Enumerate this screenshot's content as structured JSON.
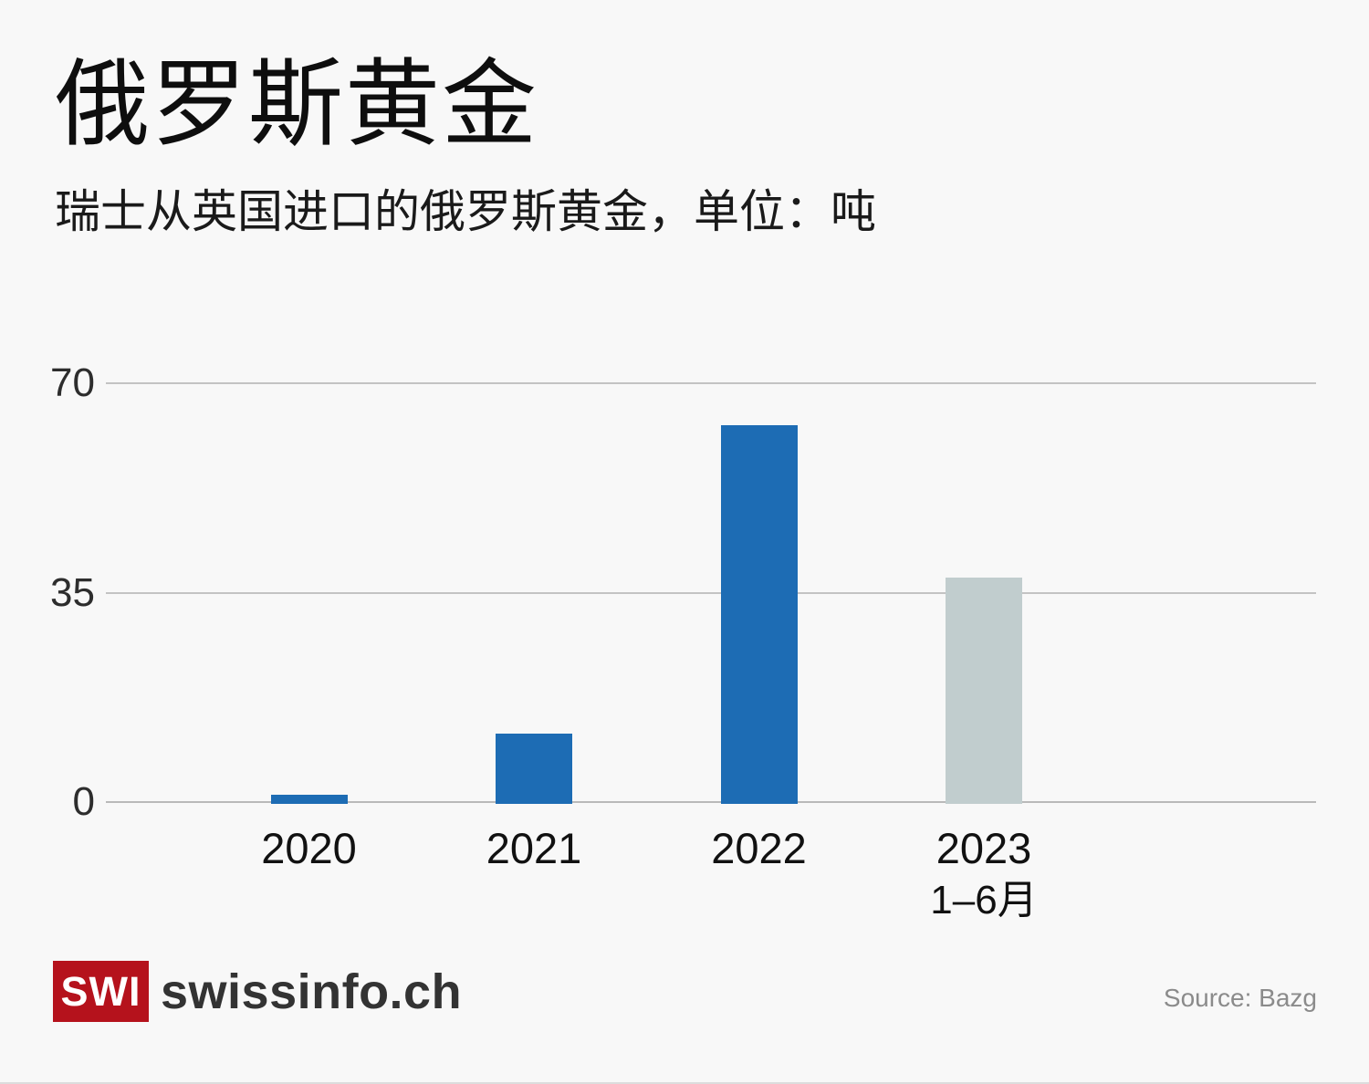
{
  "header": {
    "title": "俄罗斯黄金",
    "subtitle": "瑞士从英国进口的俄罗斯黄金，单位：吨"
  },
  "chart_data": {
    "type": "bar",
    "title": "俄罗斯黄金",
    "subtitle": "瑞士从英国进口的俄罗斯黄金，单位：吨",
    "categories": [
      "2020",
      "2021",
      "2022",
      "2023"
    ],
    "category_sublabels": [
      "",
      "",
      "",
      "1–6月"
    ],
    "values": [
      1.2,
      11.5,
      63,
      37.5
    ],
    "unit": "吨",
    "ylim": [
      0,
      70
    ],
    "yticks": [
      0,
      35,
      70
    ],
    "grid": true,
    "legend": "none",
    "bar_color_default": "#1d6cb4",
    "bar_color_partial_period": "#c1cdce",
    "partial_period_index": 3
  },
  "footer": {
    "logo_abbr": "SWI",
    "logo_name": "swissinfo.ch",
    "source": "Source: Bazg"
  },
  "colors": {
    "background": "#f8f8f8",
    "bar_blue": "#1d6cb4",
    "bar_gray": "#c1cdce",
    "gridline": "#c3c3c3",
    "logo_red": "#b5121c",
    "title_text": "#0e0e0e",
    "source_text": "#8b8b8b"
  }
}
